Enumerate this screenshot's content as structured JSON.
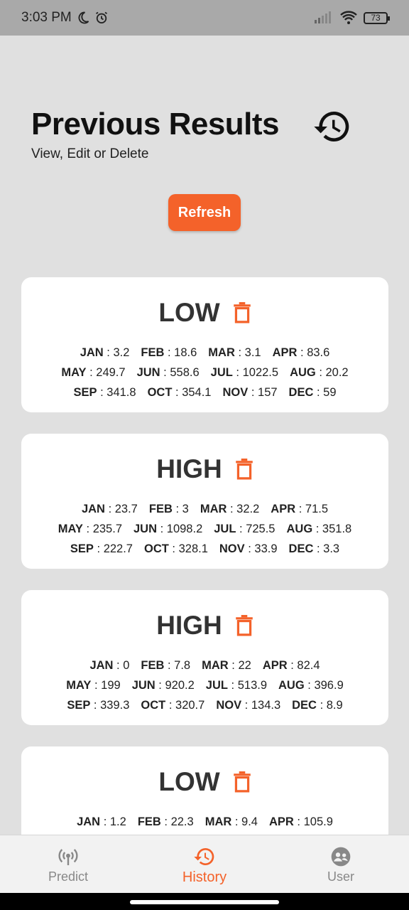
{
  "status_bar": {
    "time": "3:03 PM",
    "battery": "73"
  },
  "header": {
    "title": "Previous Results",
    "subtitle": "View, Edit or Delete"
  },
  "refresh_label": "Refresh",
  "accent_color": "#f4622a",
  "results": [
    {
      "level": "LOW",
      "rows": [
        [
          {
            "m": "JAN",
            "v": "3.2"
          },
          {
            "m": "FEB",
            "v": "18.6"
          },
          {
            "m": "MAR",
            "v": "3.1"
          },
          {
            "m": "APR",
            "v": "83.6"
          }
        ],
        [
          {
            "m": "MAY",
            "v": "249.7"
          },
          {
            "m": "JUN",
            "v": "558.6"
          },
          {
            "m": "JUL",
            "v": "1022.5"
          },
          {
            "m": "AUG",
            "v": "20.2"
          }
        ],
        [
          {
            "m": "SEP",
            "v": "341.8"
          },
          {
            "m": "OCT",
            "v": "354.1"
          },
          {
            "m": "NOV",
            "v": "157"
          },
          {
            "m": "DEC",
            "v": "59"
          }
        ]
      ]
    },
    {
      "level": "HIGH",
      "rows": [
        [
          {
            "m": "JAN",
            "v": "23.7"
          },
          {
            "m": "FEB",
            "v": "3"
          },
          {
            "m": "MAR",
            "v": "32.2"
          },
          {
            "m": "APR",
            "v": "71.5"
          }
        ],
        [
          {
            "m": "MAY",
            "v": "235.7"
          },
          {
            "m": "JUN",
            "v": "1098.2"
          },
          {
            "m": "JUL",
            "v": "725.5"
          },
          {
            "m": "AUG",
            "v": "351.8"
          }
        ],
        [
          {
            "m": "SEP",
            "v": "222.7"
          },
          {
            "m": "OCT",
            "v": "328.1"
          },
          {
            "m": "NOV",
            "v": "33.9"
          },
          {
            "m": "DEC",
            "v": "3.3"
          }
        ]
      ]
    },
    {
      "level": "HIGH",
      "rows": [
        [
          {
            "m": "JAN",
            "v": "0"
          },
          {
            "m": "FEB",
            "v": "7.8"
          },
          {
            "m": "MAR",
            "v": "22"
          },
          {
            "m": "APR",
            "v": "82.4"
          }
        ],
        [
          {
            "m": "MAY",
            "v": "199"
          },
          {
            "m": "JUN",
            "v": "920.2"
          },
          {
            "m": "JUL",
            "v": "513.9"
          },
          {
            "m": "AUG",
            "v": "396.9"
          }
        ],
        [
          {
            "m": "SEP",
            "v": "339.3"
          },
          {
            "m": "OCT",
            "v": "320.7"
          },
          {
            "m": "NOV",
            "v": "134.3"
          },
          {
            "m": "DEC",
            "v": "8.9"
          }
        ]
      ]
    },
    {
      "level": "LOW",
      "rows": [
        [
          {
            "m": "JAN",
            "v": "1.2"
          },
          {
            "m": "FEB",
            "v": "22.3"
          },
          {
            "m": "MAR",
            "v": "9.4"
          },
          {
            "m": "APR",
            "v": "105.9"
          }
        ]
      ]
    }
  ],
  "nav": [
    {
      "label": "Predict",
      "icon": "radio-tower-icon",
      "active": false
    },
    {
      "label": "History",
      "icon": "history-icon",
      "active": true
    },
    {
      "label": "User",
      "icon": "user-group-icon",
      "active": false
    }
  ]
}
